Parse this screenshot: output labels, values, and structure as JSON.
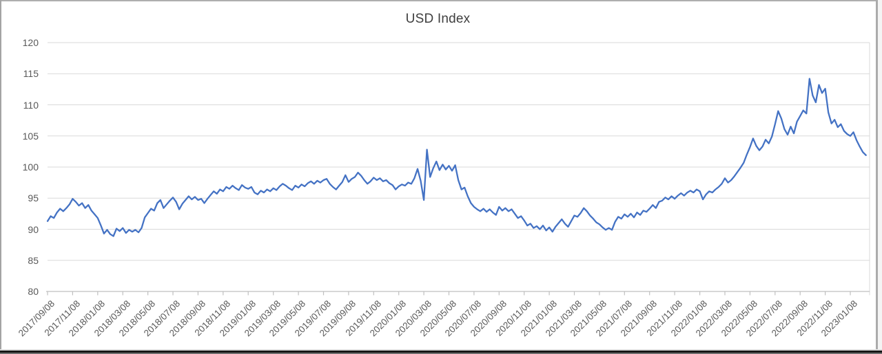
{
  "window": {
    "background": "#ffffff",
    "frame_color": "#ababab",
    "bottom_bar_colors": [
      "#dcdcdc",
      "#161616",
      "#6e6e6e"
    ]
  },
  "chart_data": {
    "type": "line",
    "title": "USD Index",
    "title_color": "#3f3f3f",
    "legend": "none",
    "grid": "horizontal-only",
    "gridline_color": "#d9d9d9",
    "axis_color": "#bfbfbf",
    "label_color": "#595959",
    "ylim": [
      80,
      120
    ],
    "y_ticks": [
      80,
      85,
      90,
      95,
      100,
      105,
      110,
      115,
      120
    ],
    "x_tick_labels": [
      "2017/09/08",
      "2017/11/08",
      "2018/01/08",
      "2018/03/08",
      "2018/05/08",
      "2018/07/08",
      "2018/09/08",
      "2018/11/08",
      "2019/01/08",
      "2019/03/08",
      "2019/05/08",
      "2019/07/08",
      "2019/09/08",
      "2019/11/08",
      "2020/01/08",
      "2020/03/08",
      "2020/05/08",
      "2020/07/08",
      "2020/09/08",
      "2020/11/08",
      "2021/01/08",
      "2021/03/08",
      "2021/05/08",
      "2021/07/08",
      "2021/09/08",
      "2021/11/08",
      "2022/01/08",
      "2022/03/08",
      "2022/05/08",
      "2022/07/08",
      "2022/09/08",
      "2022/11/08",
      "2023/01/08"
    ],
    "x_label_interval_months": 2,
    "series": [
      {
        "name": "USD Index",
        "color": "#4472c4",
        "start": "2017/09/08",
        "points_interval_months": 0.25,
        "values": [
          91.3,
          92.1,
          91.8,
          92.7,
          93.3,
          92.9,
          93.4,
          94.0,
          94.9,
          94.4,
          93.8,
          94.2,
          93.4,
          93.9,
          93.0,
          92.4,
          91.8,
          90.6,
          89.3,
          89.9,
          89.2,
          88.9,
          90.1,
          89.7,
          90.2,
          89.4,
          89.9,
          89.6,
          89.9,
          89.5,
          90.2,
          91.9,
          92.6,
          93.3,
          93.0,
          94.2,
          94.7,
          93.4,
          94.0,
          94.6,
          95.1,
          94.4,
          93.2,
          94.1,
          94.7,
          95.3,
          94.8,
          95.2,
          94.7,
          94.9,
          94.2,
          94.9,
          95.5,
          96.1,
          95.7,
          96.4,
          96.1,
          96.8,
          96.5,
          97.0,
          96.6,
          96.3,
          97.1,
          96.7,
          96.5,
          96.8,
          95.9,
          95.6,
          96.2,
          95.9,
          96.4,
          96.1,
          96.6,
          96.3,
          96.9,
          97.3,
          97.0,
          96.6,
          96.3,
          97.0,
          96.7,
          97.2,
          96.9,
          97.4,
          97.7,
          97.3,
          97.8,
          97.5,
          97.9,
          98.1,
          97.3,
          96.8,
          96.4,
          97.0,
          97.6,
          98.7,
          97.6,
          98.1,
          98.4,
          99.1,
          98.6,
          97.9,
          97.3,
          97.7,
          98.3,
          97.9,
          98.2,
          97.7,
          97.9,
          97.4,
          97.1,
          96.4,
          96.9,
          97.2,
          97.0,
          97.5,
          97.3,
          98.2,
          99.7,
          97.8,
          94.7,
          102.8,
          98.4,
          99.8,
          100.9,
          99.5,
          100.4,
          99.6,
          100.2,
          99.4,
          100.3,
          97.9,
          96.4,
          96.7,
          95.3,
          94.2,
          93.6,
          93.2,
          92.9,
          93.3,
          92.8,
          93.2,
          92.7,
          92.3,
          93.6,
          93.0,
          93.4,
          92.9,
          93.2,
          92.5,
          91.8,
          92.1,
          91.4,
          90.6,
          90.9,
          90.2,
          90.5,
          90.0,
          90.6,
          89.8,
          90.3,
          89.6,
          90.4,
          91.0,
          91.6,
          90.9,
          90.4,
          91.3,
          92.2,
          92.0,
          92.6,
          93.4,
          92.9,
          92.2,
          91.7,
          91.1,
          90.8,
          90.3,
          89.9,
          90.2,
          89.9,
          91.2,
          92.0,
          91.7,
          92.4,
          92.0,
          92.5,
          91.9,
          92.7,
          92.3,
          93.0,
          92.8,
          93.3,
          93.9,
          93.4,
          94.4,
          94.6,
          95.1,
          94.8,
          95.3,
          94.9,
          95.4,
          95.8,
          95.4,
          95.9,
          96.2,
          95.9,
          96.4,
          96.1,
          94.8,
          95.6,
          96.1,
          95.9,
          96.4,
          96.8,
          97.3,
          98.2,
          97.5,
          97.9,
          98.5,
          99.2,
          99.9,
          100.7,
          102.0,
          103.2,
          104.6,
          103.4,
          102.7,
          103.3,
          104.4,
          103.8,
          104.9,
          106.9,
          109.0,
          107.8,
          106.1,
          105.2,
          106.5,
          105.4,
          107.3,
          108.2,
          109.1,
          108.6,
          114.2,
          111.5,
          110.4,
          113.2,
          111.9,
          112.6,
          108.8,
          107.0,
          107.6,
          106.4,
          106.9,
          105.8,
          105.3,
          105.0,
          105.6,
          104.3,
          103.3,
          102.4,
          101.9
        ]
      }
    ]
  }
}
